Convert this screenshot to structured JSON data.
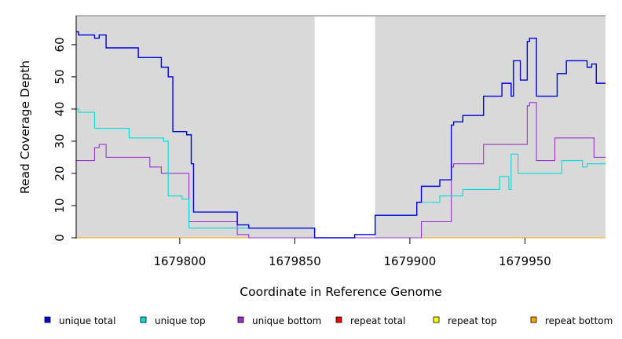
{
  "chart_data": {
    "type": "line",
    "xlabel": "Coordinate in Reference Genome",
    "ylabel": "Read Coverage Depth",
    "xlim": [
      1679755,
      1679985
    ],
    "ylim": [
      0,
      69
    ],
    "x_ticks": [
      1679800,
      1679850,
      1679900,
      1679950
    ],
    "y_ticks": [
      0,
      10,
      20,
      30,
      40,
      50,
      60
    ],
    "gap_region": [
      1679858.6,
      1679884.9
    ],
    "grid": false,
    "background": "#d9d9d9",
    "legend_position": "bottom",
    "series": [
      {
        "name": "unique total",
        "color": "#0000dd",
        "points": [
          [
            1679755,
            64
          ],
          [
            1679756,
            63
          ],
          [
            1679763,
            62
          ],
          [
            1679765,
            63
          ],
          [
            1679768,
            59
          ],
          [
            1679782,
            56
          ],
          [
            1679792,
            53
          ],
          [
            1679795,
            50
          ],
          [
            1679797,
            33
          ],
          [
            1679803,
            32
          ],
          [
            1679805,
            23
          ],
          [
            1679806,
            8
          ],
          [
            1679825,
            4
          ],
          [
            1679830,
            3
          ],
          [
            1679858.6,
            0
          ],
          [
            1679876,
            1
          ],
          [
            1679884.9,
            7
          ],
          [
            1679903,
            11
          ],
          [
            1679905,
            16
          ],
          [
            1679913,
            18
          ],
          [
            1679918,
            35
          ],
          [
            1679919,
            36
          ],
          [
            1679923,
            38
          ],
          [
            1679932,
            44
          ],
          [
            1679940,
            48
          ],
          [
            1679944,
            44
          ],
          [
            1679945,
            55
          ],
          [
            1679948,
            49
          ],
          [
            1679951,
            61
          ],
          [
            1679952,
            62
          ],
          [
            1679955,
            44
          ],
          [
            1679964,
            51
          ],
          [
            1679968,
            55
          ],
          [
            1679977,
            53
          ],
          [
            1679979,
            54
          ],
          [
            1679981,
            48
          ],
          [
            1679985,
            48
          ]
        ]
      },
      {
        "name": "unique top",
        "color": "#00dddd",
        "points": [
          [
            1679755,
            40
          ],
          [
            1679756,
            39
          ],
          [
            1679763,
            34
          ],
          [
            1679778,
            31
          ],
          [
            1679793,
            30
          ],
          [
            1679795,
            13
          ],
          [
            1679801,
            12
          ],
          [
            1679804,
            3
          ],
          [
            1679830,
            3
          ],
          [
            1679858.6,
            0
          ],
          [
            1679876,
            1
          ],
          [
            1679884.9,
            7
          ],
          [
            1679903,
            11
          ],
          [
            1679913,
            13
          ],
          [
            1679923,
            15
          ],
          [
            1679939,
            19
          ],
          [
            1679943,
            15
          ],
          [
            1679944,
            26
          ],
          [
            1679947,
            20
          ],
          [
            1679966,
            24
          ],
          [
            1679975,
            22
          ],
          [
            1679977,
            23
          ],
          [
            1679985,
            23
          ]
        ]
      },
      {
        "name": "unique bottom",
        "color": "#9932cc",
        "points": [
          [
            1679755,
            24
          ],
          [
            1679763,
            28
          ],
          [
            1679765,
            29
          ],
          [
            1679768,
            25
          ],
          [
            1679787,
            22
          ],
          [
            1679792,
            20
          ],
          [
            1679804,
            5
          ],
          [
            1679825,
            1
          ],
          [
            1679830,
            0
          ],
          [
            1679905,
            5
          ],
          [
            1679918,
            22
          ],
          [
            1679919,
            23
          ],
          [
            1679932,
            29
          ],
          [
            1679951,
            41
          ],
          [
            1679952,
            42
          ],
          [
            1679955,
            24
          ],
          [
            1679963,
            31
          ],
          [
            1679980,
            25
          ],
          [
            1679985,
            25
          ]
        ]
      },
      {
        "name": "repeat total",
        "color": "#ff0000",
        "points": [
          [
            1679755,
            0
          ],
          [
            1679985,
            0
          ]
        ]
      },
      {
        "name": "repeat top",
        "color": "#ffff00",
        "points": [
          [
            1679755,
            0
          ],
          [
            1679985,
            0
          ]
        ]
      },
      {
        "name": "repeat bottom",
        "color": "#ffa500",
        "points": [
          [
            1679755,
            0
          ],
          [
            1679985,
            0
          ]
        ]
      }
    ]
  }
}
